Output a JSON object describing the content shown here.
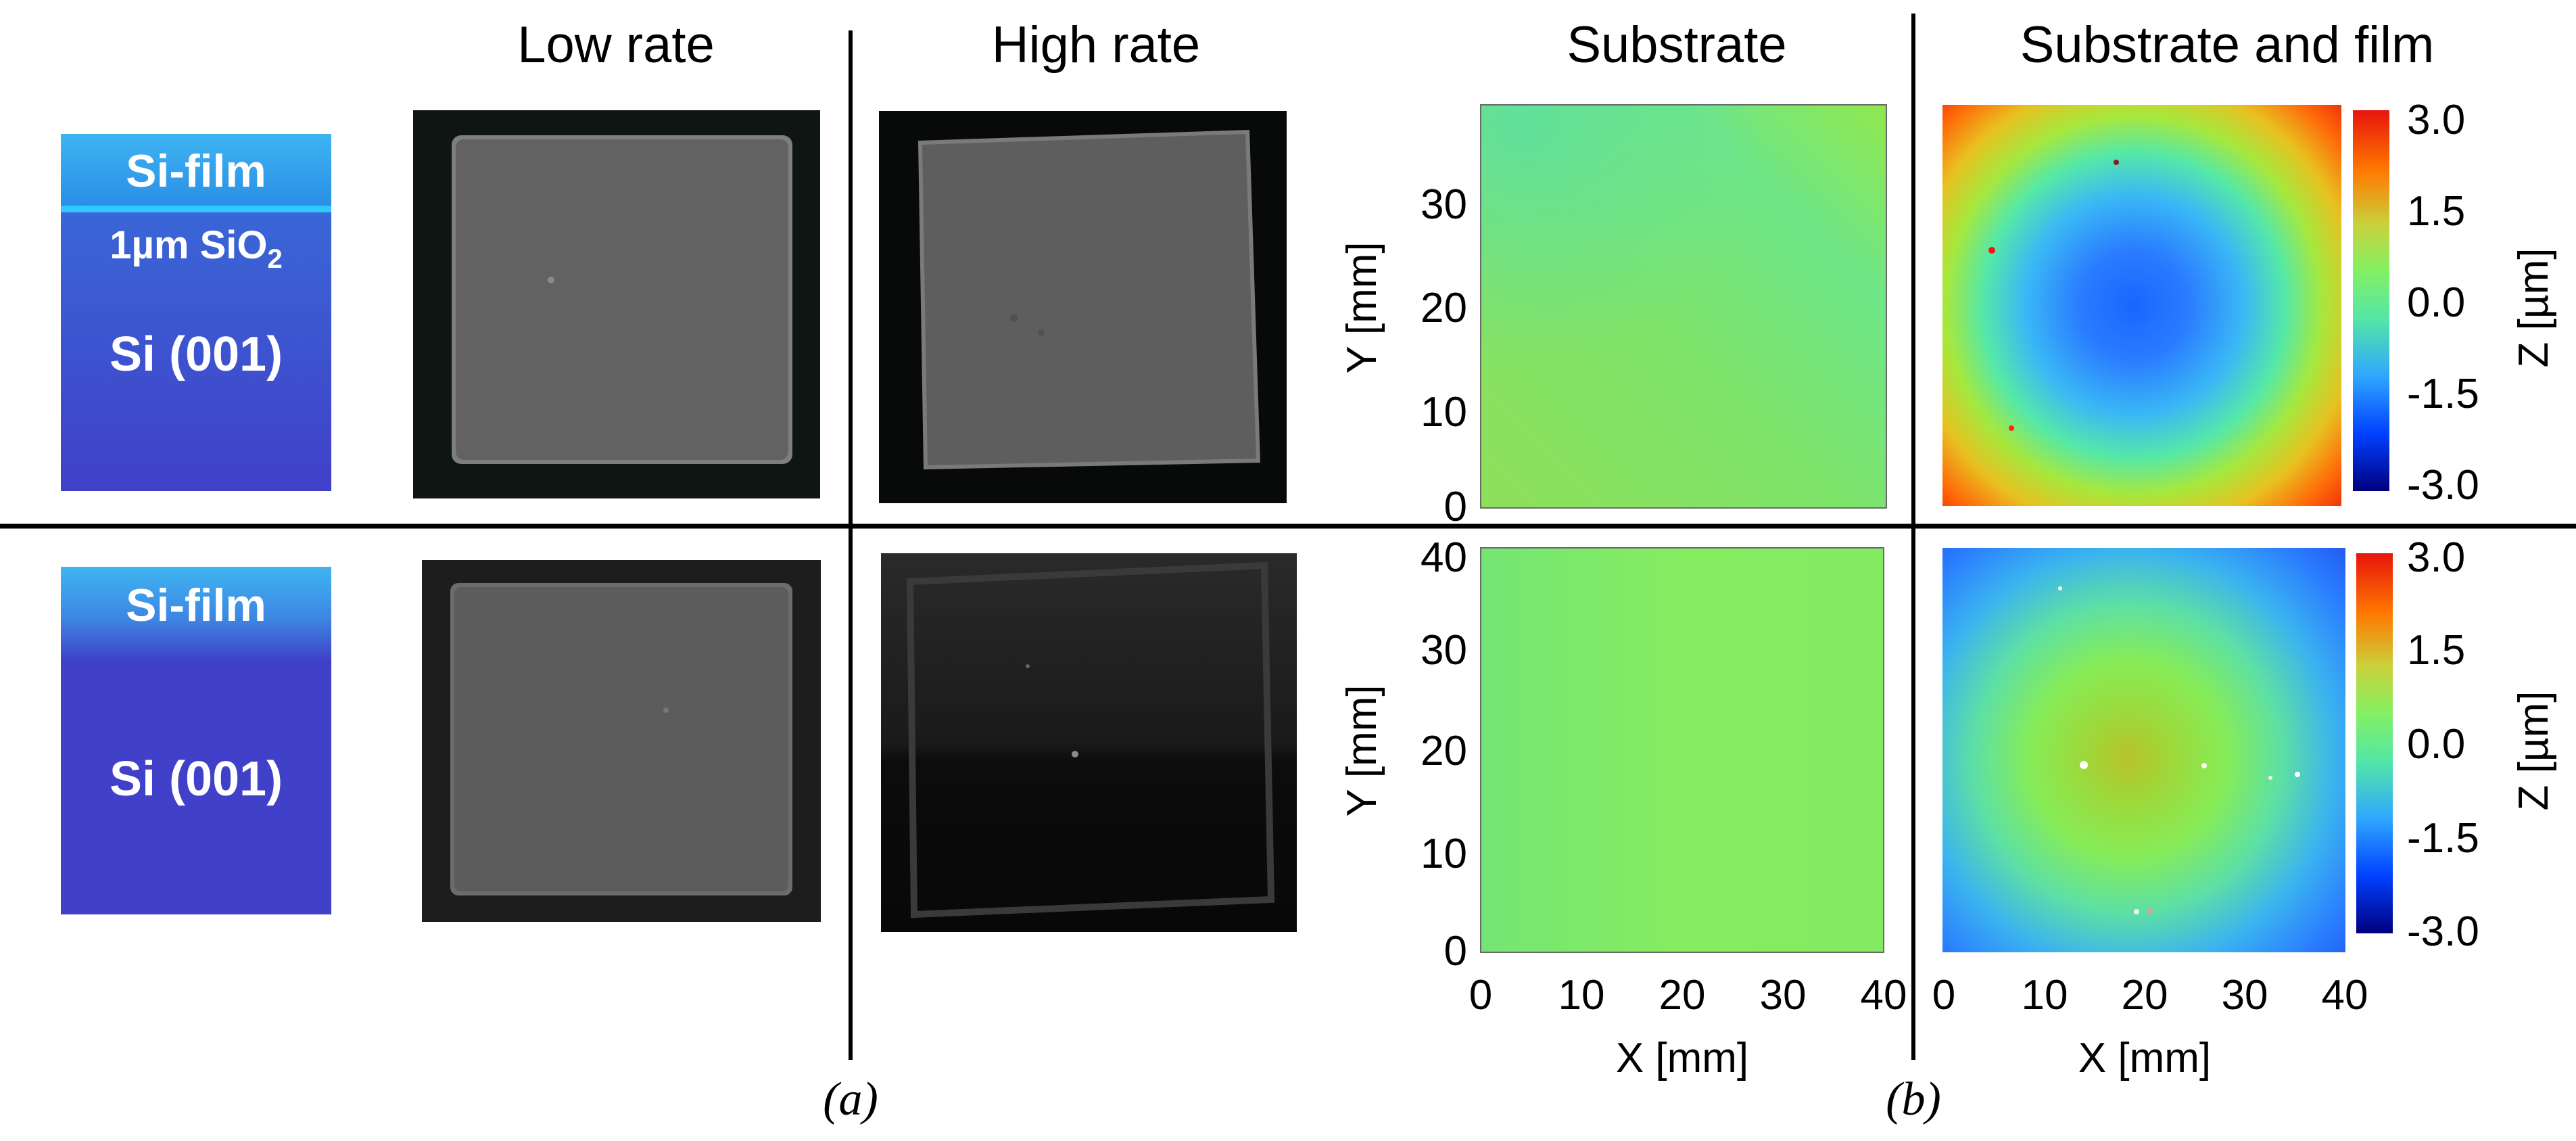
{
  "headers": {
    "low_rate": "Low rate",
    "high_rate": "High rate",
    "substrate": "Substrate",
    "substrate_and_film": "Substrate and film"
  },
  "schematic_top": {
    "film": "Si-film",
    "oxide_prefix": "1µm SiO",
    "oxide_sub": "2",
    "substrate": "Si (001)"
  },
  "schematic_bottom": {
    "film": "Si-film",
    "substrate": "Si (001)"
  },
  "panel_labels": {
    "a": "(a)",
    "b": "(b)"
  },
  "axes": {
    "xlabel": "X [mm]",
    "ylabel": "Y [mm]",
    "top_substrate_yticks": [
      "30",
      "20",
      "10",
      "0"
    ],
    "bottom_substrate_yticks": [
      "40",
      "30",
      "20",
      "10",
      "0"
    ],
    "xticks": [
      "0",
      "10",
      "20",
      "30",
      "40"
    ]
  },
  "colorbar": {
    "label": "Z [µm]",
    "ticks": [
      "3.0",
      "1.5",
      "0.0",
      "-1.5",
      "-3.0"
    ],
    "range": [
      -3.0,
      3.0
    ],
    "colors": [
      "#00007f",
      "#0040ff",
      "#2fa6ff",
      "#52e6a8",
      "#84f063",
      "#c8d23c",
      "#ff7a00",
      "#e8140c"
    ]
  },
  "chart_data": [
    {
      "type": "heatmap",
      "title": "Substrate",
      "row": "top",
      "ylabel": "Y [mm]",
      "xlim": [
        0,
        40
      ],
      "ylim": [
        0,
        40
      ],
      "z_estimate": "approximately 0 to 0.5 µm, nearly flat"
    },
    {
      "type": "heatmap",
      "title": "Substrate and film",
      "row": "top",
      "zlabel": "Z [µm]",
      "zlim": [
        -3.0,
        3.0
      ],
      "xlim": [
        0,
        40
      ],
      "ylim": [
        0,
        40
      ],
      "z_estimate": "center about -2.0 µm rising to about 3.0 µm at corners (concave)"
    },
    {
      "type": "heatmap",
      "title": "Substrate",
      "row": "bottom",
      "xlabel": "X [mm]",
      "ylabel": "Y [mm]",
      "xlim": [
        0,
        40
      ],
      "ylim": [
        0,
        40
      ],
      "z_estimate": "approximately 0.2 to 0.4 µm, nearly flat"
    },
    {
      "type": "heatmap",
      "title": "Substrate and film",
      "row": "bottom",
      "xlabel": "X [mm]",
      "zlabel": "Z [µm]",
      "zlim": [
        -3.0,
        3.0
      ],
      "xlim": [
        0,
        40
      ],
      "ylim": [
        0,
        40
      ],
      "z_estimate": "center about 1.0 µm falling to about -1.5 µm at corners (convex)"
    }
  ]
}
